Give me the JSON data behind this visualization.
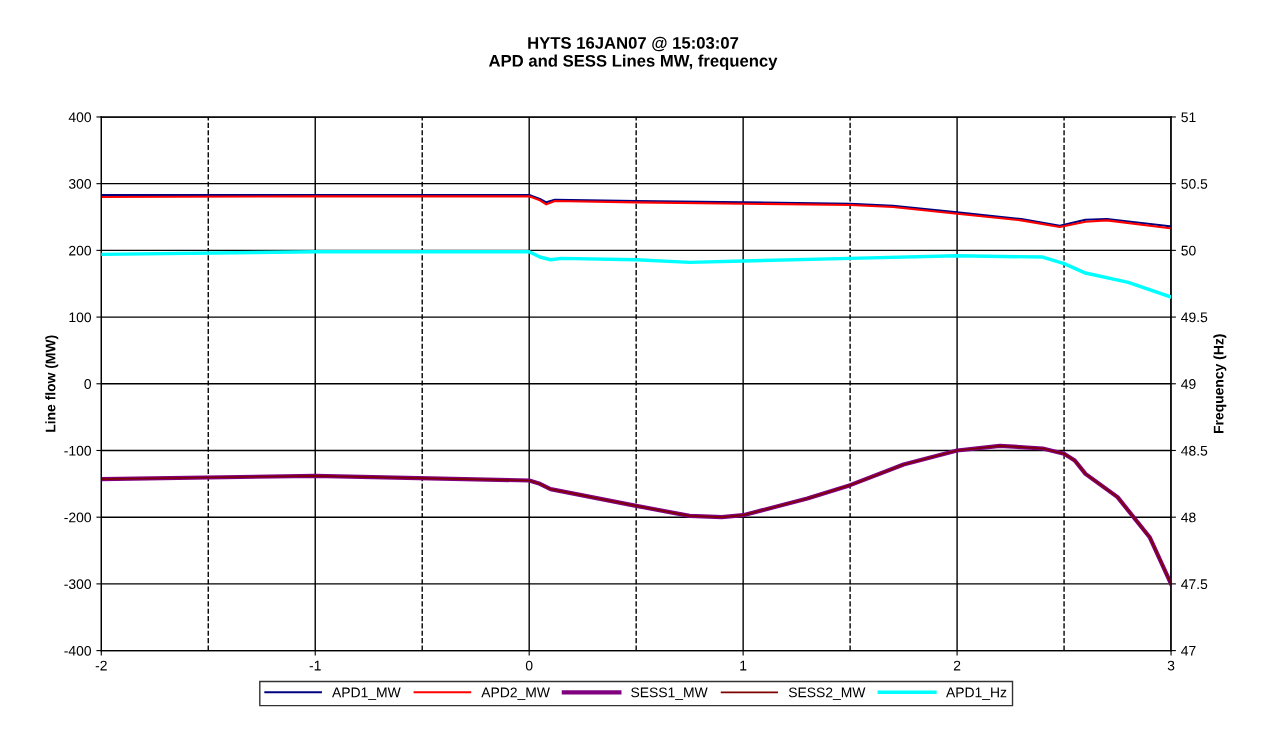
{
  "chart_data": {
    "type": "line",
    "title": "HYTS 16JAN07 @ 15:03:07\nAPD and SESS Lines MW, frequency",
    "ylabel": "Line flow (MW)",
    "y2label": "Frequency (Hz)",
    "xlim": [
      -2,
      3
    ],
    "xticks": [
      -2,
      -1,
      0,
      1,
      2,
      3
    ],
    "ylim": [
      -400,
      400
    ],
    "yticks": [
      -400,
      -300,
      -200,
      -100,
      0,
      100,
      200,
      300,
      400
    ],
    "y2lim": [
      47,
      51
    ],
    "y2ticks": [
      47,
      47.5,
      48,
      48.5,
      49,
      49.5,
      50,
      50.5,
      51
    ],
    "grid": true,
    "legend": "bottom",
    "line_style": "solid",
    "marker": "none",
    "ref_lines": [
      {
        "axis": "x",
        "value": -1.5,
        "line_style": "dashed",
        "color": "#000000"
      },
      {
        "axis": "x",
        "value": -0.5,
        "line_style": "dashed",
        "color": "#000000"
      },
      {
        "axis": "x",
        "value": 0.5,
        "line_style": "dashed",
        "color": "#000000"
      },
      {
        "axis": "x",
        "value": 1.5,
        "line_style": "dashed",
        "color": "#000000"
      },
      {
        "axis": "x",
        "value": 2.5,
        "line_style": "dashed",
        "color": "#000000"
      }
    ],
    "series": [
      {
        "name": "APD1_MW",
        "color": "#000080",
        "x": [
          -2,
          -1,
          0,
          0.05,
          0.08,
          0.12,
          0.5,
          1,
          1.5,
          1.7,
          2,
          2.3,
          2.48,
          2.6,
          2.7,
          3
        ],
        "values": [
          283,
          283,
          283,
          277,
          272,
          276,
          274,
          272,
          270,
          267,
          257,
          247,
          237,
          246,
          247,
          236
        ]
      },
      {
        "name": "APD2_MW",
        "color": "#ff0000",
        "x": [
          -2,
          -1,
          0,
          0.05,
          0.08,
          0.12,
          0.5,
          1,
          1.5,
          1.7,
          2,
          2.3,
          2.48,
          2.6,
          2.7,
          3
        ],
        "values": [
          280,
          281,
          281,
          275,
          269,
          274,
          272,
          270,
          268,
          265,
          255,
          245,
          235,
          243,
          245,
          233
        ]
      },
      {
        "name": "SESS1_MW",
        "color": "#800080",
        "x": [
          -2,
          -1,
          0,
          0.05,
          0.1,
          0.5,
          0.75,
          0.9,
          1,
          1.3,
          1.5,
          1.75,
          2,
          2.2,
          2.4,
          2.5,
          2.55,
          2.6,
          2.75,
          2.9,
          3
        ],
        "values": [
          -143,
          -138,
          -145,
          -150,
          -158,
          -183,
          -198,
          -200,
          -197,
          -172,
          -152,
          -121,
          -100,
          -93,
          -97,
          -105,
          -115,
          -135,
          -170,
          -230,
          -300
        ]
      },
      {
        "name": "SESS2_MW",
        "color": "#800000",
        "x": [
          -2,
          -1,
          0,
          0.05,
          0.1,
          0.5,
          0.75,
          0.9,
          1,
          1.3,
          1.5,
          1.75,
          2,
          2.2,
          2.4,
          2.5,
          2.55,
          2.6,
          2.75,
          2.9,
          3
        ],
        "values": [
          -143,
          -138,
          -145,
          -150,
          -158,
          -183,
          -198,
          -200,
          -197,
          -172,
          -152,
          -121,
          -100,
          -93,
          -97,
          -105,
          -115,
          -135,
          -170,
          -230,
          -300
        ]
      },
      {
        "name": "APD1_Hz",
        "color": "#00ffff",
        "axis": "y2",
        "x": [
          -2,
          -1,
          0,
          0.05,
          0.1,
          0.15,
          0.5,
          0.75,
          1,
          1.5,
          2,
          2.4,
          2.5,
          2.6,
          2.8,
          3
        ],
        "values": [
          49.97,
          49.99,
          49.99,
          49.95,
          49.93,
          49.94,
          49.93,
          49.91,
          49.92,
          49.94,
          49.96,
          49.95,
          49.9,
          49.83,
          49.76,
          49.65
        ]
      }
    ]
  }
}
